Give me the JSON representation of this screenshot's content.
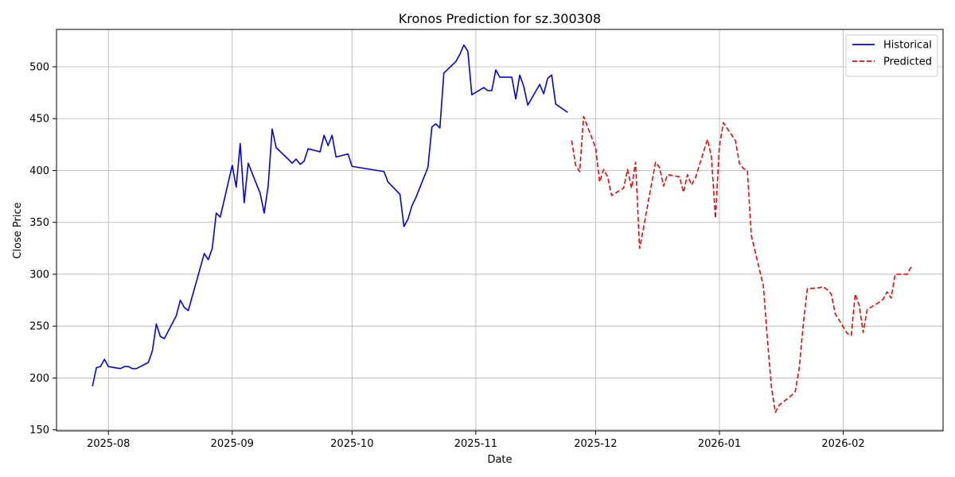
{
  "chart_data": {
    "type": "line",
    "title": "Kronos Prediction for sz.300308",
    "xlabel": "Date",
    "ylabel": "Close Price",
    "x_axis_type": "date",
    "xlim": [
      "2025-07-19",
      "2026-02-26"
    ],
    "ylim": [
      149,
      536
    ],
    "x_ticks": [
      {
        "date": "2025-08-01",
        "label": "2025-08"
      },
      {
        "date": "2025-09-01",
        "label": "2025-09"
      },
      {
        "date": "2025-10-01",
        "label": "2025-10"
      },
      {
        "date": "2025-11-01",
        "label": "2025-11"
      },
      {
        "date": "2025-12-01",
        "label": "2025-12"
      },
      {
        "date": "2026-01-01",
        "label": "2026-01"
      },
      {
        "date": "2026-02-01",
        "label": "2026-02"
      }
    ],
    "y_ticks": [
      150,
      200,
      250,
      300,
      350,
      400,
      450,
      500
    ],
    "grid": true,
    "legend_position": "top-right",
    "series": [
      {
        "name": "Historical",
        "color": "#0000ff",
        "line_style": "solid",
        "points": [
          [
            "2025-07-28",
            192
          ],
          [
            "2025-07-29",
            210
          ],
          [
            "2025-07-30",
            211
          ],
          [
            "2025-07-31",
            218
          ],
          [
            "2025-08-01",
            211
          ],
          [
            "2025-08-04",
            209
          ],
          [
            "2025-08-05",
            211
          ],
          [
            "2025-08-06",
            211
          ],
          [
            "2025-08-07",
            209
          ],
          [
            "2025-08-08",
            209
          ],
          [
            "2025-08-11",
            215
          ],
          [
            "2025-08-12",
            226
          ],
          [
            "2025-08-13",
            252
          ],
          [
            "2025-08-14",
            240
          ],
          [
            "2025-08-15",
            238
          ],
          [
            "2025-08-18",
            260
          ],
          [
            "2025-08-19",
            275
          ],
          [
            "2025-08-20",
            268
          ],
          [
            "2025-08-21",
            265
          ],
          [
            "2025-08-25",
            320
          ],
          [
            "2025-08-26",
            314
          ],
          [
            "2025-08-27",
            325
          ],
          [
            "2025-08-28",
            359
          ],
          [
            "2025-08-29",
            355
          ],
          [
            "2025-09-01",
            405
          ],
          [
            "2025-09-02",
            384
          ],
          [
            "2025-09-03",
            426
          ],
          [
            "2025-09-04",
            369
          ],
          [
            "2025-09-05",
            407
          ],
          [
            "2025-09-08",
            378
          ],
          [
            "2025-09-09",
            359
          ],
          [
            "2025-09-10",
            385
          ],
          [
            "2025-09-11",
            440
          ],
          [
            "2025-09-12",
            422
          ],
          [
            "2025-09-15",
            411
          ],
          [
            "2025-09-16",
            407
          ],
          [
            "2025-09-17",
            411
          ],
          [
            "2025-09-18",
            406
          ],
          [
            "2025-09-19",
            409
          ],
          [
            "2025-09-20",
            421
          ],
          [
            "2025-09-23",
            418
          ],
          [
            "2025-09-24",
            434
          ],
          [
            "2025-09-25",
            424
          ],
          [
            "2025-09-26",
            434
          ],
          [
            "2025-09-27",
            413
          ],
          [
            "2025-09-30",
            416
          ],
          [
            "2025-10-01",
            404
          ],
          [
            "2025-10-09",
            399
          ],
          [
            "2025-10-10",
            389
          ],
          [
            "2025-10-13",
            377
          ],
          [
            "2025-10-14",
            346
          ],
          [
            "2025-10-15",
            353
          ],
          [
            "2025-10-16",
            366
          ],
          [
            "2025-10-17",
            374
          ],
          [
            "2025-10-20",
            403
          ],
          [
            "2025-10-21",
            442
          ],
          [
            "2025-10-22",
            445
          ],
          [
            "2025-10-23",
            441
          ],
          [
            "2025-10-24",
            494
          ],
          [
            "2025-10-27",
            505
          ],
          [
            "2025-10-28",
            512
          ],
          [
            "2025-10-29",
            521
          ],
          [
            "2025-10-30",
            515
          ],
          [
            "2025-10-31",
            473
          ],
          [
            "2025-11-03",
            480
          ],
          [
            "2025-11-04",
            477
          ],
          [
            "2025-11-05",
            477
          ],
          [
            "2025-11-06",
            497
          ],
          [
            "2025-11-07",
            490
          ],
          [
            "2025-11-10",
            490
          ],
          [
            "2025-11-11",
            469
          ],
          [
            "2025-11-12",
            492
          ],
          [
            "2025-11-13",
            481
          ],
          [
            "2025-11-14",
            463
          ],
          [
            "2025-11-17",
            483
          ],
          [
            "2025-11-18",
            474
          ],
          [
            "2025-11-19",
            489
          ],
          [
            "2025-11-20",
            492
          ],
          [
            "2025-11-21",
            464
          ],
          [
            "2025-11-24",
            456
          ]
        ]
      },
      {
        "name": "Predicted",
        "color": "#ff0000",
        "line_style": "dashed",
        "points": [
          [
            "2025-11-25",
            429
          ],
          [
            "2025-11-26",
            405
          ],
          [
            "2025-11-27",
            399
          ],
          [
            "2025-11-28",
            452
          ],
          [
            "2025-12-01",
            422
          ],
          [
            "2025-12-02",
            389
          ],
          [
            "2025-12-03",
            401
          ],
          [
            "2025-12-04",
            394
          ],
          [
            "2025-12-05",
            376
          ],
          [
            "2025-12-08",
            383
          ],
          [
            "2025-12-09",
            401
          ],
          [
            "2025-12-10",
            383
          ],
          [
            "2025-12-11",
            408
          ],
          [
            "2025-12-12",
            325
          ],
          [
            "2025-12-13",
            345
          ],
          [
            "2025-12-16",
            408
          ],
          [
            "2025-12-17",
            403
          ],
          [
            "2025-12-18",
            385
          ],
          [
            "2025-12-19",
            396
          ],
          [
            "2025-12-22",
            394
          ],
          [
            "2025-12-23",
            379
          ],
          [
            "2025-12-24",
            396
          ],
          [
            "2025-12-25",
            386
          ],
          [
            "2025-12-26",
            393
          ],
          [
            "2025-12-29",
            430
          ],
          [
            "2025-12-30",
            413
          ],
          [
            "2025-12-31",
            354
          ],
          [
            "2026-01-01",
            424
          ],
          [
            "2026-01-02",
            446
          ],
          [
            "2026-01-05",
            429
          ],
          [
            "2026-01-06",
            407
          ],
          [
            "2026-01-07",
            402
          ],
          [
            "2026-01-08",
            400
          ],
          [
            "2026-01-09",
            337
          ],
          [
            "2026-01-12",
            289
          ],
          [
            "2026-01-13",
            238
          ],
          [
            "2026-01-14",
            192
          ],
          [
            "2026-01-15",
            167
          ],
          [
            "2026-01-16",
            174
          ],
          [
            "2026-01-19",
            183
          ],
          [
            "2026-01-20",
            187
          ],
          [
            "2026-01-21",
            210
          ],
          [
            "2026-01-22",
            252
          ],
          [
            "2026-01-23",
            286
          ],
          [
            "2026-01-26",
            287
          ],
          [
            "2026-01-27",
            288
          ],
          [
            "2026-01-28",
            285
          ],
          [
            "2026-01-29",
            281
          ],
          [
            "2026-01-30",
            262
          ],
          [
            "2026-02-02",
            243
          ],
          [
            "2026-02-03",
            241
          ],
          [
            "2026-02-04",
            281
          ],
          [
            "2026-02-05",
            270
          ],
          [
            "2026-02-06",
            244
          ],
          [
            "2026-02-07",
            266
          ],
          [
            "2026-02-10",
            273
          ],
          [
            "2026-02-11",
            276
          ],
          [
            "2026-02-12",
            283
          ],
          [
            "2026-02-13",
            277
          ],
          [
            "2026-02-14",
            300
          ],
          [
            "2026-02-17",
            300
          ],
          [
            "2026-02-18",
            307
          ]
        ]
      }
    ]
  }
}
